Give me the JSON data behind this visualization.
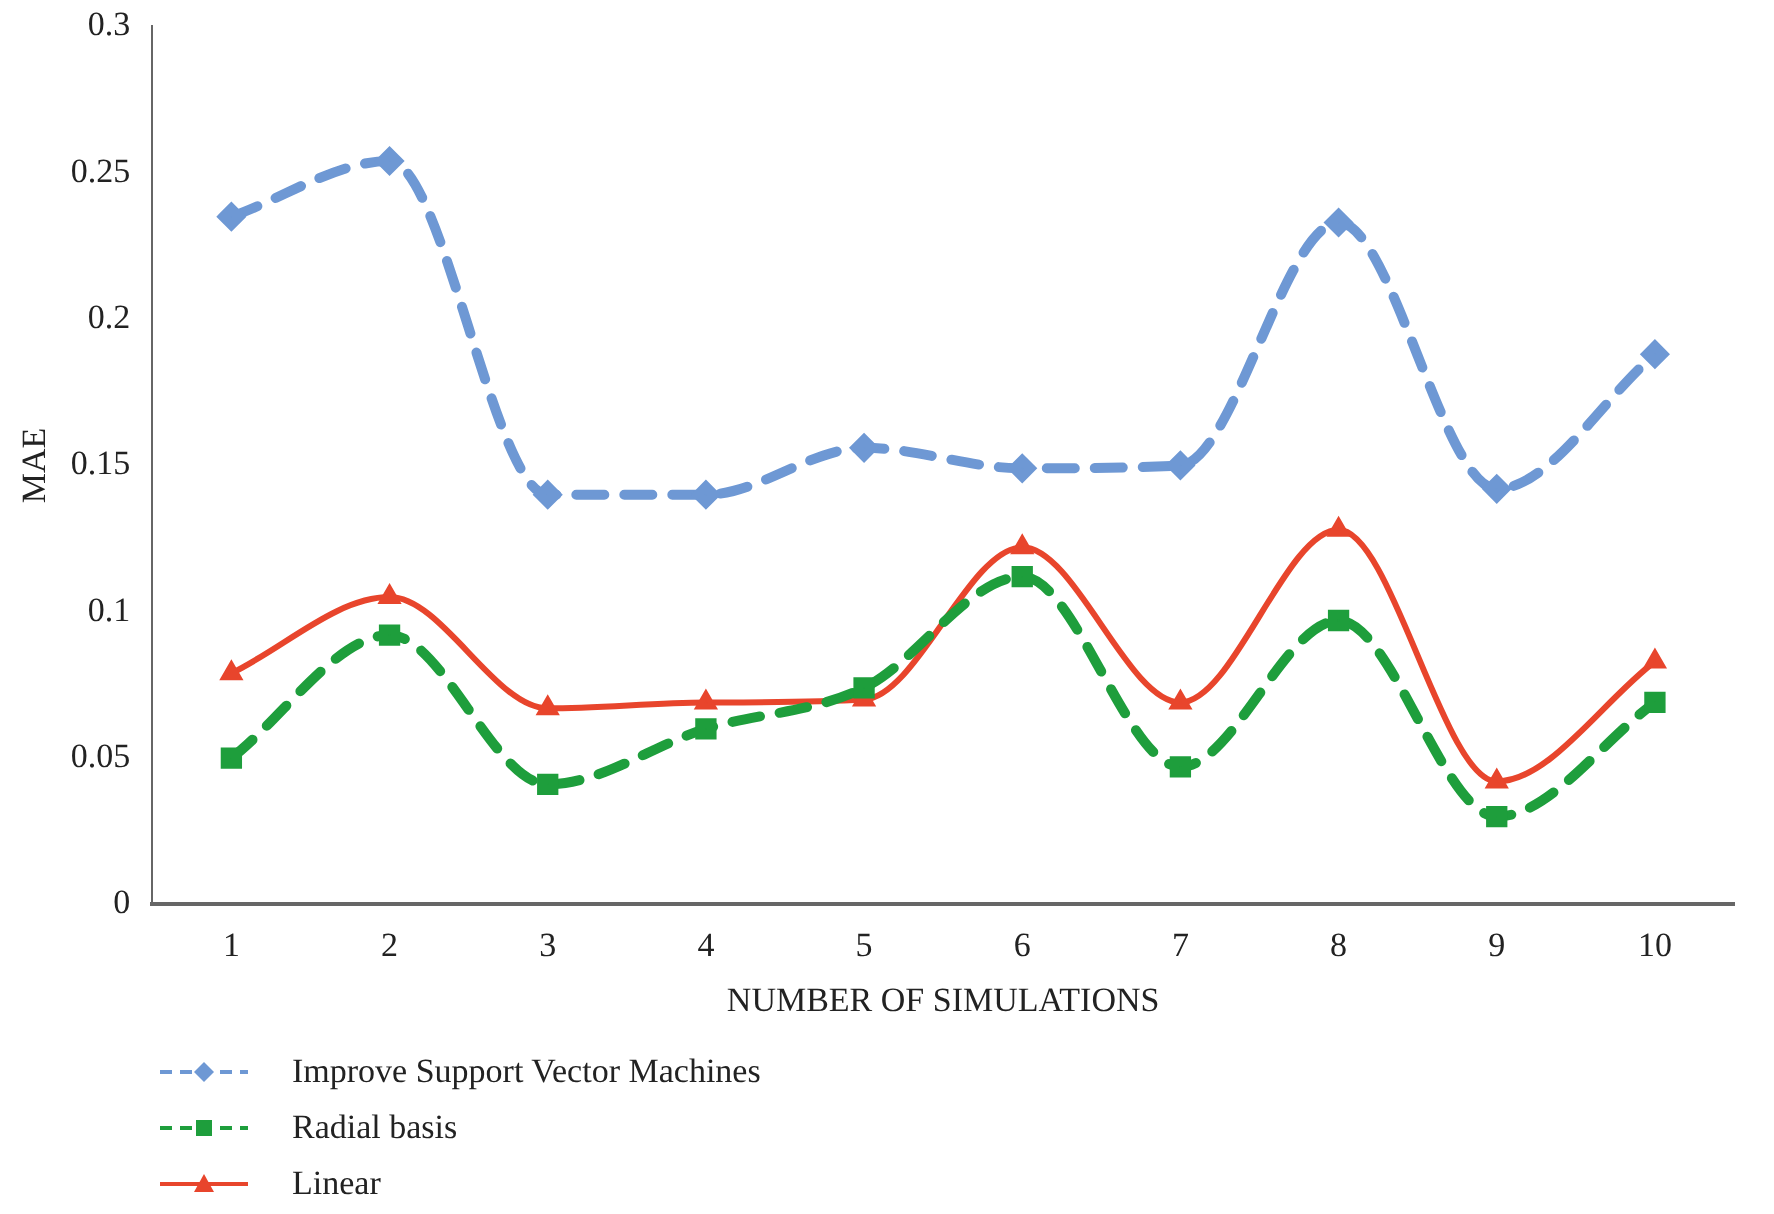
{
  "chart_data": {
    "type": "line",
    "xlabel": "NUMBER OF SIMULATIONS",
    "ylabel": "MAE",
    "categories": [
      "1",
      "2",
      "3",
      "4",
      "5",
      "6",
      "7",
      "8",
      "9",
      "10"
    ],
    "ylim": [
      0,
      0.3
    ],
    "yticks": [
      0,
      0.05,
      0.1,
      0.15,
      0.2,
      0.25,
      0.3
    ],
    "grid": false,
    "legend": "bottom left",
    "series": [
      {
        "name": "Improve Support Vector Machines",
        "color": "#6e98d4",
        "values": [
          0.235,
          0.254,
          0.14,
          0.14,
          0.156,
          0.149,
          0.15,
          0.233,
          0.142,
          0.188
        ],
        "marker": "diamond",
        "line_style": "dashed"
      },
      {
        "name": "Radial basis",
        "color": "#1e9e3c",
        "values": [
          0.05,
          0.092,
          0.041,
          0.06,
          0.074,
          0.112,
          0.047,
          0.097,
          0.03,
          0.069
        ],
        "marker": "square",
        "line_style": "dashed"
      },
      {
        "name": "Linear",
        "color": "#e8452c",
        "values": [
          0.079,
          0.105,
          0.067,
          0.069,
          0.07,
          0.122,
          0.069,
          0.128,
          0.042,
          0.083
        ],
        "marker": "triangle",
        "line_style": "solid"
      }
    ]
  }
}
